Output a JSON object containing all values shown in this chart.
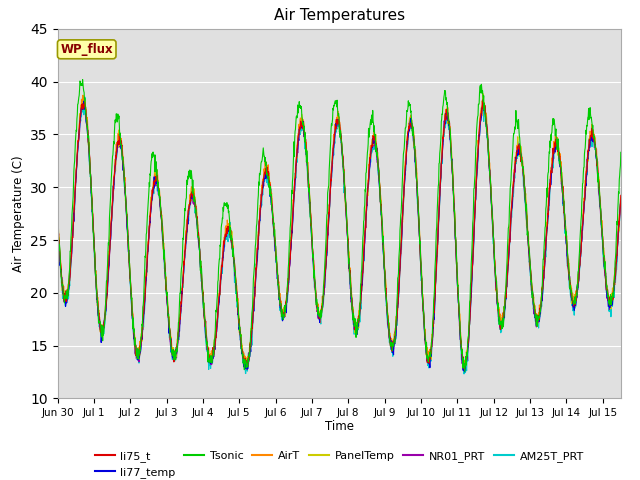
{
  "title": "Air Temperatures",
  "xlabel": "Time",
  "ylabel": "Air Temperature (C)",
  "ylim": [
    10,
    45
  ],
  "yticks": [
    10,
    15,
    20,
    25,
    30,
    35,
    40,
    45
  ],
  "plot_bg_color": "#e0e0e0",
  "fig_bg_color": "#ffffff",
  "colors": {
    "li75_t": "#dd0000",
    "li77_temp": "#0000dd",
    "Tsonic": "#00cc00",
    "AirT": "#ff8800",
    "PanelTemp": "#cccc00",
    "NR01_PRT": "#9900aa",
    "AM25T_PRT": "#00cccc"
  },
  "annotation_text": "WP_flux",
  "annotation_bg": "#ffffaa",
  "annotation_border": "#999900",
  "annotation_text_color": "#880000",
  "num_days": 15.5,
  "samples_per_day": 96
}
